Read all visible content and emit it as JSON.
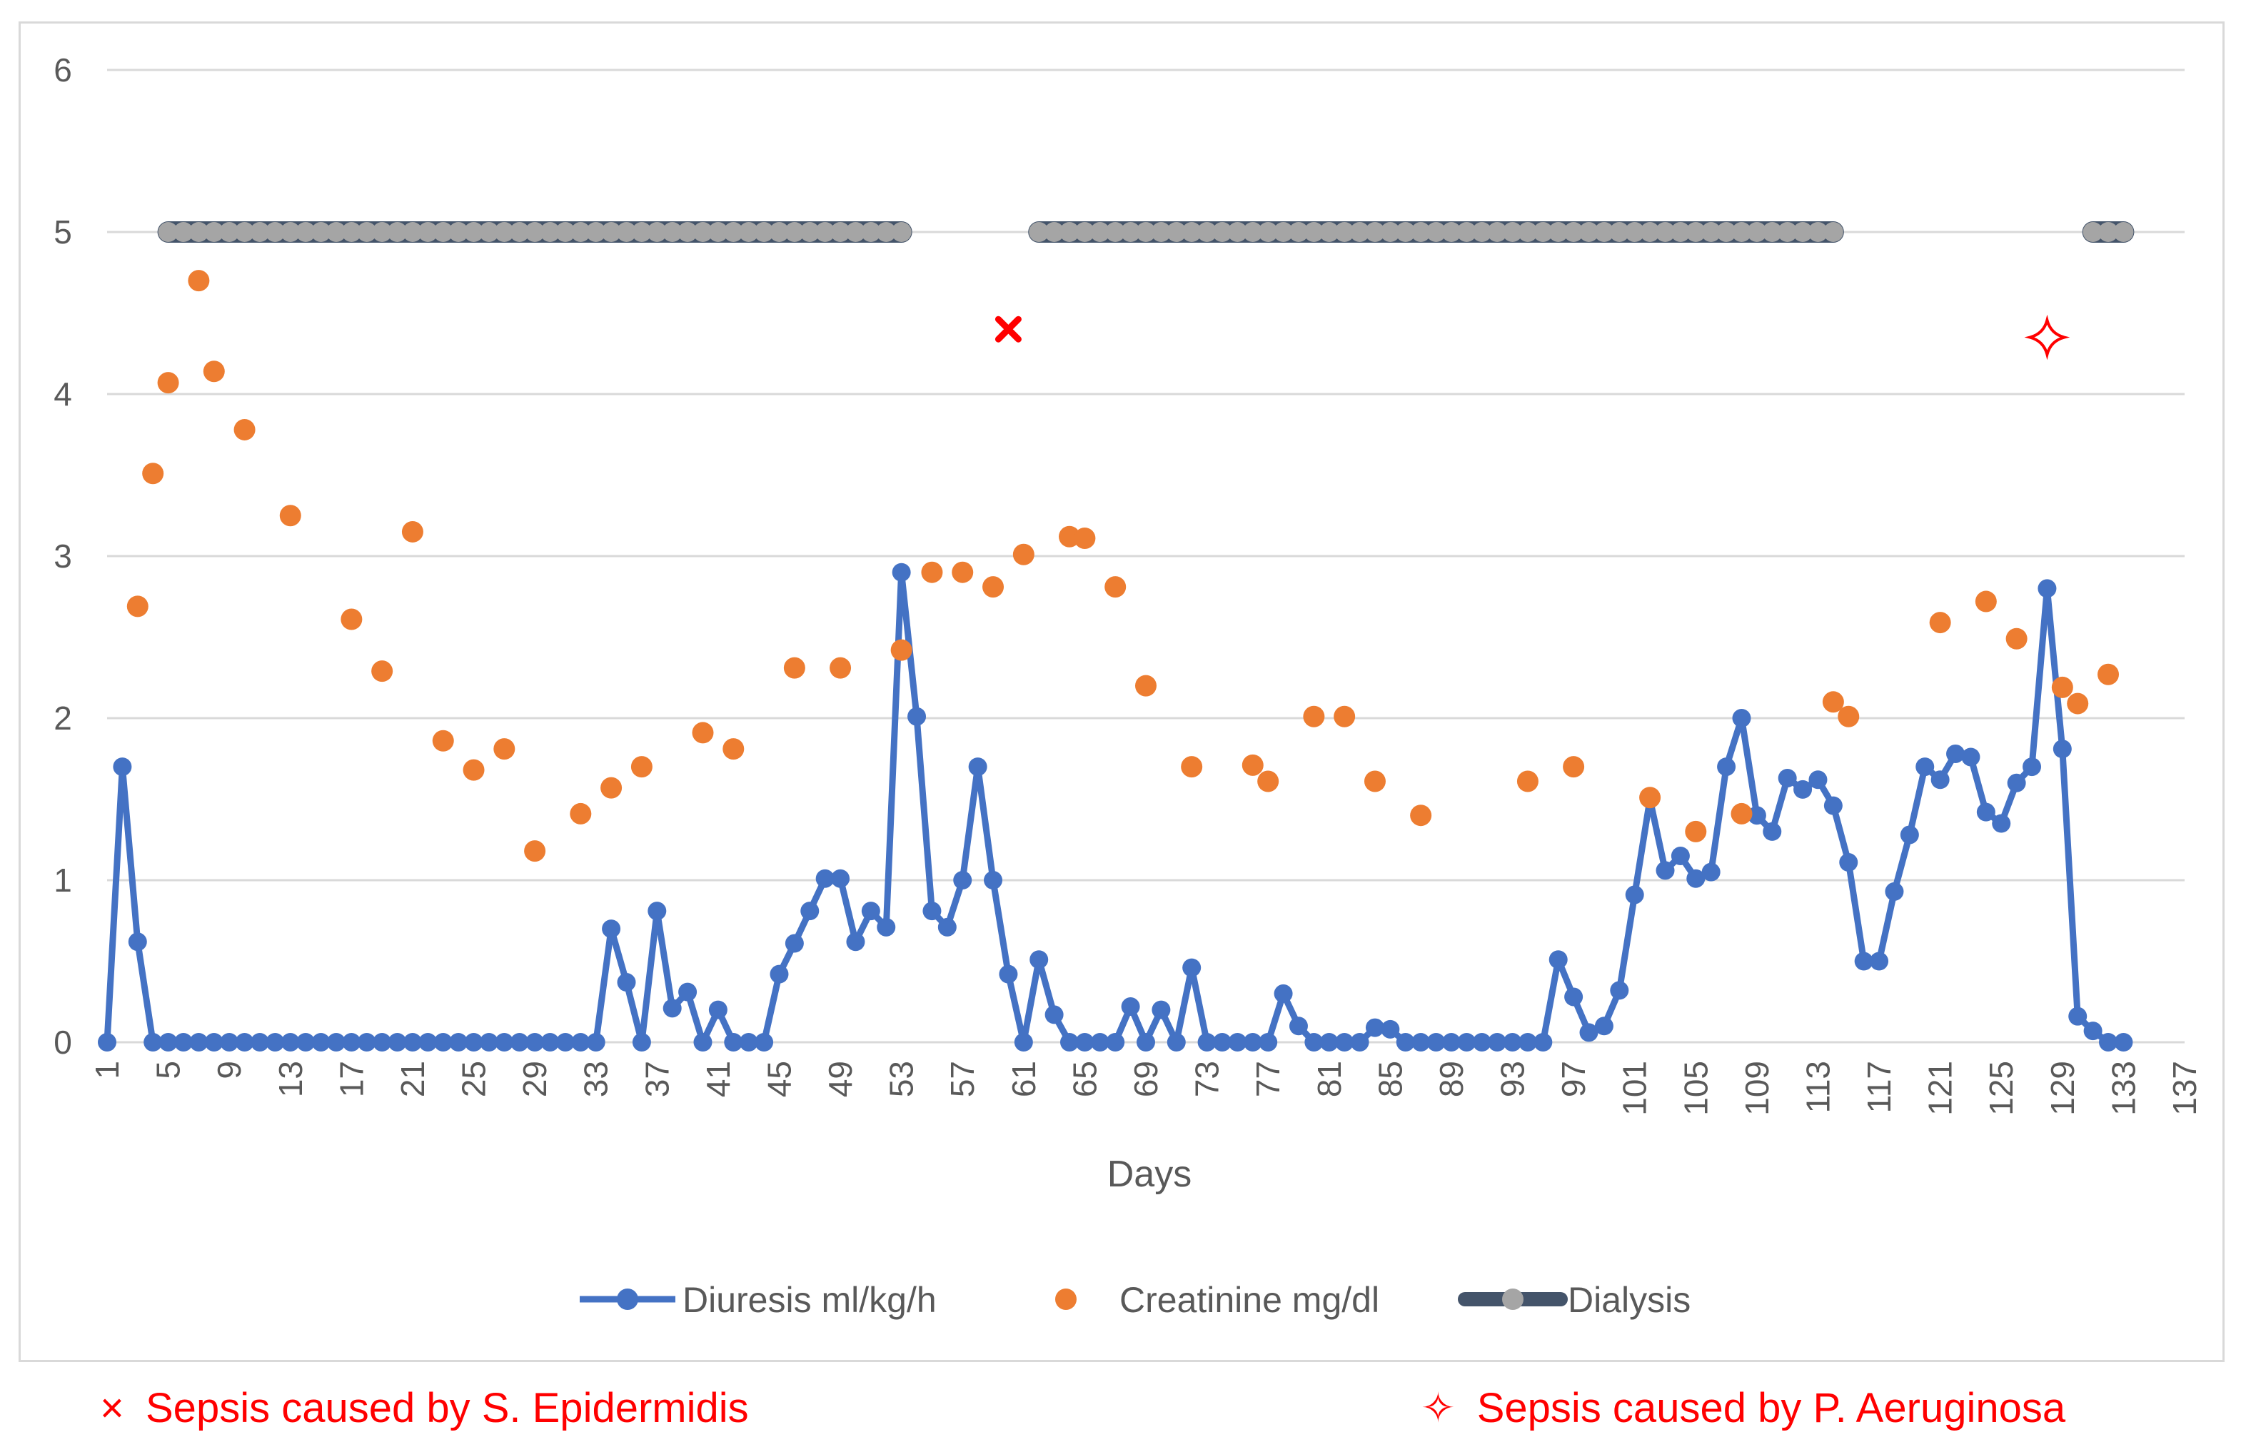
{
  "chart_data": {
    "type": "line",
    "title": "",
    "xlabel": "Days",
    "ylabel": "",
    "ylim": [
      0,
      6
    ],
    "yticks": [
      0,
      1,
      2,
      3,
      4,
      5,
      6
    ],
    "xlim": [
      1,
      137
    ],
    "xticks": [
      1,
      5,
      9,
      13,
      17,
      21,
      25,
      29,
      33,
      37,
      41,
      45,
      49,
      53,
      57,
      61,
      65,
      69,
      73,
      77,
      81,
      85,
      89,
      93,
      97,
      101,
      105,
      109,
      113,
      117,
      121,
      125,
      129,
      133,
      137
    ],
    "grid": true,
    "legend_position": "bottom",
    "colors": {
      "diuresis": "#4472c4",
      "creatinine": "#ed7d31",
      "dialysis_fill": "#a5a5a5",
      "dialysis_line": "#44546a",
      "annotation": "#ff0000",
      "gridline": "#d9d9d9",
      "tick_text": "#595959"
    },
    "series": [
      {
        "name": "Diuresis ml/kg/h",
        "kind": "line-markers",
        "points": [
          [
            1,
            0
          ],
          [
            2,
            1.7
          ],
          [
            3,
            0.62
          ],
          [
            4,
            0
          ],
          [
            5,
            0
          ],
          [
            6,
            0
          ],
          [
            7,
            0
          ],
          [
            8,
            0
          ],
          [
            9,
            0
          ],
          [
            10,
            0
          ],
          [
            11,
            0
          ],
          [
            12,
            0
          ],
          [
            13,
            0
          ],
          [
            14,
            0
          ],
          [
            15,
            0
          ],
          [
            16,
            0
          ],
          [
            17,
            0
          ],
          [
            18,
            0
          ],
          [
            19,
            0
          ],
          [
            20,
            0
          ],
          [
            21,
            0
          ],
          [
            22,
            0
          ],
          [
            23,
            0
          ],
          [
            24,
            0
          ],
          [
            25,
            0
          ],
          [
            26,
            0
          ],
          [
            27,
            0
          ],
          [
            28,
            0
          ],
          [
            29,
            0
          ],
          [
            30,
            0
          ],
          [
            31,
            0
          ],
          [
            32,
            0
          ],
          [
            33,
            0
          ],
          [
            34,
            0.7
          ],
          [
            35,
            0.37
          ],
          [
            36,
            0
          ],
          [
            37,
            0.81
          ],
          [
            38,
            0.21
          ],
          [
            39,
            0.31
          ],
          [
            40,
            0
          ],
          [
            41,
            0.2
          ],
          [
            42,
            0
          ],
          [
            43,
            0
          ],
          [
            44,
            0
          ],
          [
            45,
            0.42
          ],
          [
            46,
            0.61
          ],
          [
            47,
            0.81
          ],
          [
            48,
            1.01
          ],
          [
            49,
            1.01
          ],
          [
            50,
            0.62
          ],
          [
            51,
            0.81
          ],
          [
            52,
            0.71
          ],
          [
            53,
            2.9
          ],
          [
            54,
            2.01
          ],
          [
            55,
            0.81
          ],
          [
            56,
            0.71
          ],
          [
            57,
            1.0
          ],
          [
            58,
            1.7
          ],
          [
            59,
            1.0
          ],
          [
            60,
            0.42
          ],
          [
            61,
            0
          ],
          [
            62,
            0.51
          ],
          [
            63,
            0.17
          ],
          [
            64,
            0
          ],
          [
            65,
            0
          ],
          [
            66,
            0
          ],
          [
            67,
            0
          ],
          [
            68,
            0.22
          ],
          [
            69,
            0
          ],
          [
            70,
            0.2
          ],
          [
            71,
            0
          ],
          [
            72,
            0.46
          ],
          [
            73,
            0
          ],
          [
            74,
            0
          ],
          [
            75,
            0
          ],
          [
            76,
            0
          ],
          [
            77,
            0
          ],
          [
            78,
            0.3
          ],
          [
            79,
            0.1
          ],
          [
            80,
            0
          ],
          [
            81,
            0
          ],
          [
            82,
            0
          ],
          [
            83,
            0
          ],
          [
            84,
            0.09
          ],
          [
            85,
            0.08
          ],
          [
            86,
            0
          ],
          [
            87,
            0
          ],
          [
            88,
            0
          ],
          [
            89,
            0
          ],
          [
            90,
            0
          ],
          [
            91,
            0
          ],
          [
            92,
            0
          ],
          [
            93,
            0
          ],
          [
            94,
            0
          ],
          [
            95,
            0
          ],
          [
            96,
            0.51
          ],
          [
            97,
            0.28
          ],
          [
            98,
            0.06
          ],
          [
            99,
            0.1
          ],
          [
            100,
            0.32
          ],
          [
            101,
            0.91
          ],
          [
            102,
            1.5
          ],
          [
            103,
            1.06
          ],
          [
            104,
            1.15
          ],
          [
            105,
            1.01
          ],
          [
            106,
            1.05
          ],
          [
            107,
            1.7
          ],
          [
            108,
            2.0
          ],
          [
            109,
            1.4
          ],
          [
            110,
            1.3
          ],
          [
            111,
            1.63
          ],
          [
            112,
            1.56
          ],
          [
            113,
            1.62
          ],
          [
            114,
            1.46
          ],
          [
            115,
            1.11
          ],
          [
            116,
            0.5
          ],
          [
            117,
            0.5
          ],
          [
            118,
            0.93
          ],
          [
            119,
            1.28
          ],
          [
            120,
            1.7
          ],
          [
            121,
            1.62
          ],
          [
            122,
            1.78
          ],
          [
            123,
            1.76
          ],
          [
            124,
            1.42
          ],
          [
            125,
            1.35
          ],
          [
            126,
            1.6
          ],
          [
            127,
            1.7
          ],
          [
            128,
            2.8
          ],
          [
            129,
            1.81
          ],
          [
            130,
            0.16
          ],
          [
            131,
            0.07
          ],
          [
            132,
            0
          ],
          [
            133,
            0
          ]
        ]
      },
      {
        "name": "Creatinine mg/dl",
        "kind": "markers",
        "points": [
          [
            3,
            2.69
          ],
          [
            4,
            3.51
          ],
          [
            5,
            4.07
          ],
          [
            7,
            4.7
          ],
          [
            8,
            4.14
          ],
          [
            10,
            3.78
          ],
          [
            13,
            3.25
          ],
          [
            17,
            2.61
          ],
          [
            19,
            2.29
          ],
          [
            21,
            3.15
          ],
          [
            23,
            1.86
          ],
          [
            25,
            1.68
          ],
          [
            27,
            1.81
          ],
          [
            29,
            1.18
          ],
          [
            32,
            1.41
          ],
          [
            34,
            1.57
          ],
          [
            36,
            1.7
          ],
          [
            40,
            1.91
          ],
          [
            42,
            1.81
          ],
          [
            46,
            2.31
          ],
          [
            49,
            2.31
          ],
          [
            53,
            2.42
          ],
          [
            55,
            2.9
          ],
          [
            57,
            2.9
          ],
          [
            59,
            2.81
          ],
          [
            61,
            3.01
          ],
          [
            64,
            3.12
          ],
          [
            65,
            3.11
          ],
          [
            67,
            2.81
          ],
          [
            69,
            2.2
          ],
          [
            72,
            1.7
          ],
          [
            76,
            1.71
          ],
          [
            77,
            1.61
          ],
          [
            80,
            2.01
          ],
          [
            82,
            2.01
          ],
          [
            84,
            1.61
          ],
          [
            87,
            1.4
          ],
          [
            94,
            1.61
          ],
          [
            97,
            1.7
          ],
          [
            102,
            1.51
          ],
          [
            105,
            1.3
          ],
          [
            108,
            1.41
          ],
          [
            114,
            2.1
          ],
          [
            115,
            2.01
          ],
          [
            121,
            2.59
          ],
          [
            124,
            2.72
          ],
          [
            126,
            2.49
          ],
          [
            129,
            2.19
          ],
          [
            130,
            2.09
          ],
          [
            132,
            2.27
          ]
        ]
      },
      {
        "name": "Dialysis",
        "kind": "segments",
        "value": 5,
        "segments": [
          [
            5,
            53
          ],
          [
            62,
            114
          ],
          [
            131,
            133
          ]
        ]
      }
    ],
    "annotations": [
      {
        "label": "Sepsis caused by S. Epidermidis",
        "marker": "×",
        "x": 60,
        "y": 4.4
      },
      {
        "label": "Sepsis caused by P. Aeruginosa",
        "marker": "✧",
        "x": 128,
        "y": 4.35
      }
    ]
  }
}
